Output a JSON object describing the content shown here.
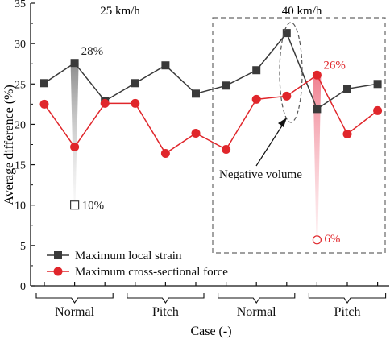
{
  "chart_data": {
    "type": "line",
    "ylabel": "Average difference (%)",
    "xlabel": "Case (-)",
    "ylim": [
      0,
      35
    ],
    "yticks": [
      "0",
      "5",
      "10",
      "15",
      "20",
      "25",
      "30",
      "35"
    ],
    "x": [
      1,
      2,
      3,
      4,
      5,
      6,
      7,
      8,
      9,
      10,
      11,
      12
    ],
    "series": [
      {
        "name": "Maximum local strain",
        "color": "#3a3a3a",
        "marker": "square",
        "values": [
          25.1,
          27.6,
          22.9,
          25.1,
          27.3,
          23.8,
          24.8,
          26.7,
          31.3,
          21.9,
          24.4,
          25.0
        ]
      },
      {
        "name": "Maximum cross-sectional force",
        "color": "#e0262b",
        "marker": "circle",
        "values": [
          22.5,
          17.2,
          22.6,
          22.6,
          16.4,
          18.9,
          16.9,
          23.1,
          23.5,
          26.1,
          18.8,
          21.7
        ]
      }
    ],
    "groups": [
      {
        "label": "Normal",
        "from": 1,
        "to": 3
      },
      {
        "label": "Pitch",
        "from": 4,
        "to": 6
      },
      {
        "label": "Normal",
        "from": 7,
        "to": 9
      },
      {
        "label": "Pitch",
        "from": 10,
        "to": 12
      }
    ],
    "speed_labels": [
      {
        "text": "25 km/h",
        "x": 3.5
      },
      {
        "text": "40 km/h",
        "x": 9.5
      }
    ],
    "annotations": {
      "strain_top": {
        "text": "28%",
        "x": 2,
        "y": 27.6
      },
      "strain_bottom": {
        "text": "10%",
        "x": 2,
        "y": 10
      },
      "force_top": {
        "text": "26%",
        "x": 10,
        "y": 26.1
      },
      "force_bottom": {
        "text": "6%",
        "x": 10,
        "y": 5.7
      },
      "negative_volume": "Negative volume"
    },
    "spread_colors": {
      "strain": "#a6a6a6",
      "force": "#f4a6b0"
    },
    "legend_position": "bottom-left"
  }
}
